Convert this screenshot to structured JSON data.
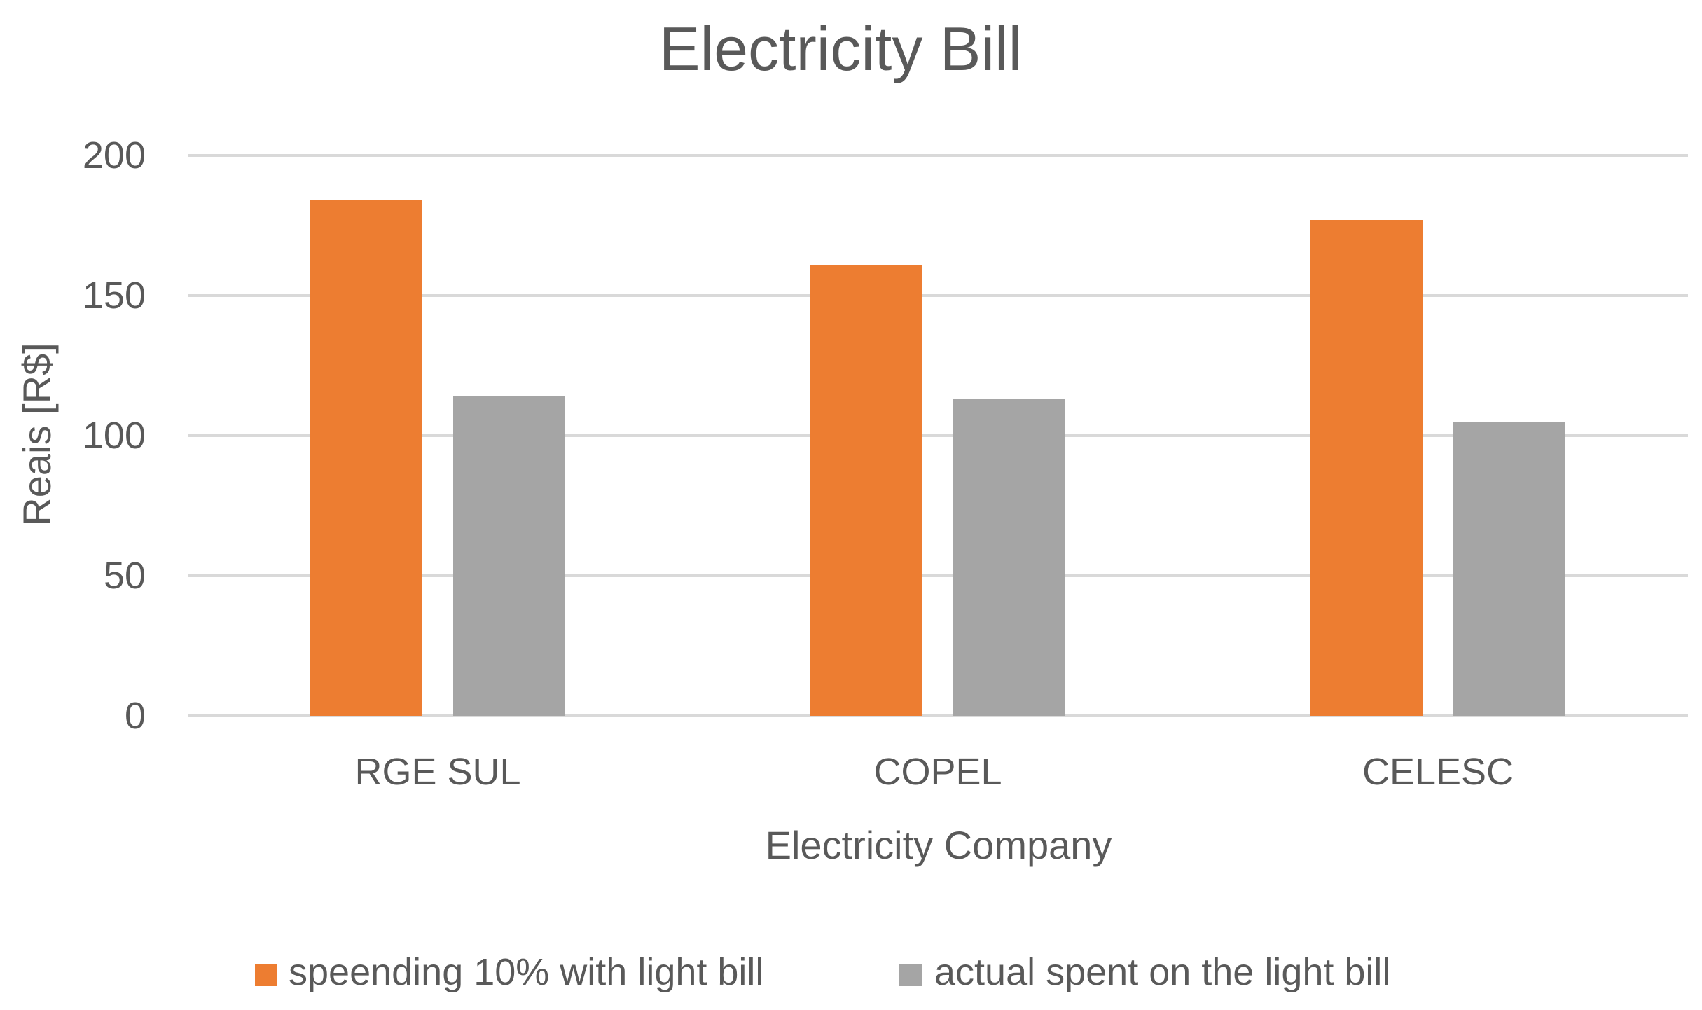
{
  "chart_data": {
    "type": "bar",
    "title": "Electricity Bill",
    "xlabel": "Electricity Company",
    "ylabel": "Reais [R$]",
    "categories": [
      "RGE SUL",
      "COPEL",
      "CELESC"
    ],
    "series": [
      {
        "name": "speending 10% with light bill",
        "values": [
          184,
          161,
          177
        ],
        "color": "#ED7D31"
      },
      {
        "name": "actual spent on the light bill",
        "values": [
          114,
          113,
          105
        ],
        "color": "#A5A5A5"
      }
    ],
    "ylim": [
      0,
      200
    ],
    "yticks": [
      0,
      50,
      100,
      150,
      200
    ],
    "grid": true,
    "legend_position": "bottom"
  },
  "colors": {
    "gridline": "#D9D9D9",
    "text": "#595959",
    "background": "#FFFFFF"
  }
}
